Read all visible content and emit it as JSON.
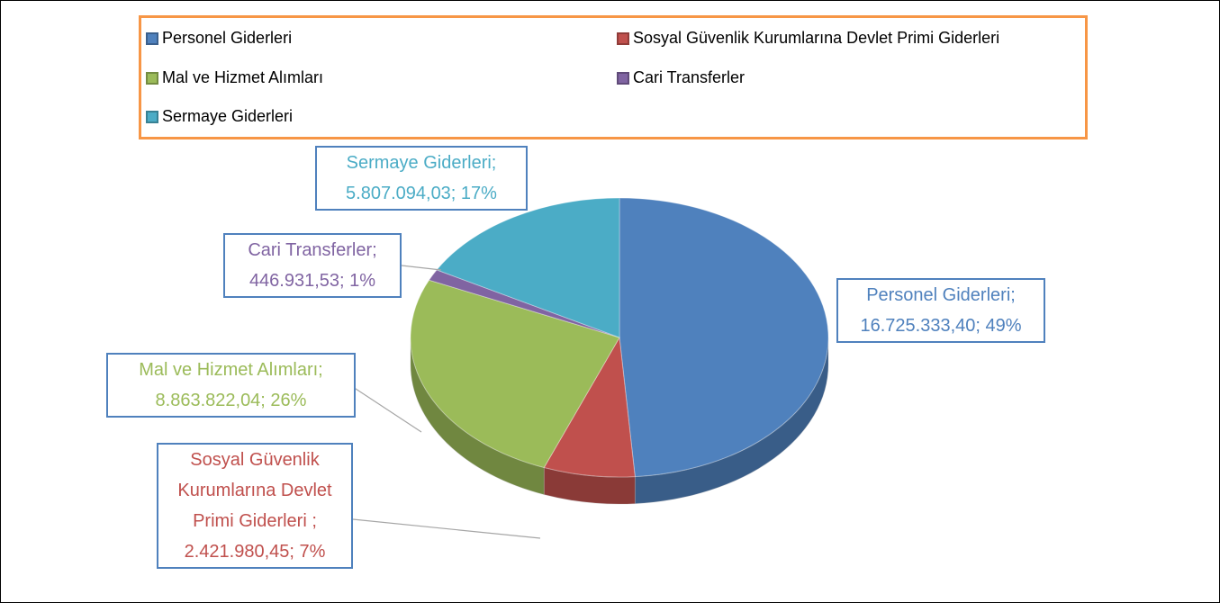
{
  "chart_data": {
    "type": "pie",
    "categories": [
      "Personel Giderleri",
      "Sosyal Güvenlik Kurumlarına Devlet Primi Giderleri",
      "Mal ve Hizmet Alımları",
      "Cari Transferler",
      "Sermaye Giderleri"
    ],
    "values": [
      16725333.4,
      2421980.45,
      8863822.04,
      446931.53,
      5807094.03
    ],
    "value_labels": [
      "Personel Giderleri; 16.725.333,40; 49%",
      "Sosyal Güvenlik Kurumlarına Devlet Primi Giderleri ; 2.421.980,45; 7%",
      "Mal ve Hizmet Alımları; 8.863.822,04; 26%",
      "Cari Transferler; 446.931,53; 1%",
      "Sermaye Giderleri; 5.807.094,03; 17%"
    ],
    "colors": [
      "#4f81bd",
      "#c0504d",
      "#9bbb59",
      "#8064a2",
      "#4bacc6"
    ],
    "legend": "top"
  }
}
